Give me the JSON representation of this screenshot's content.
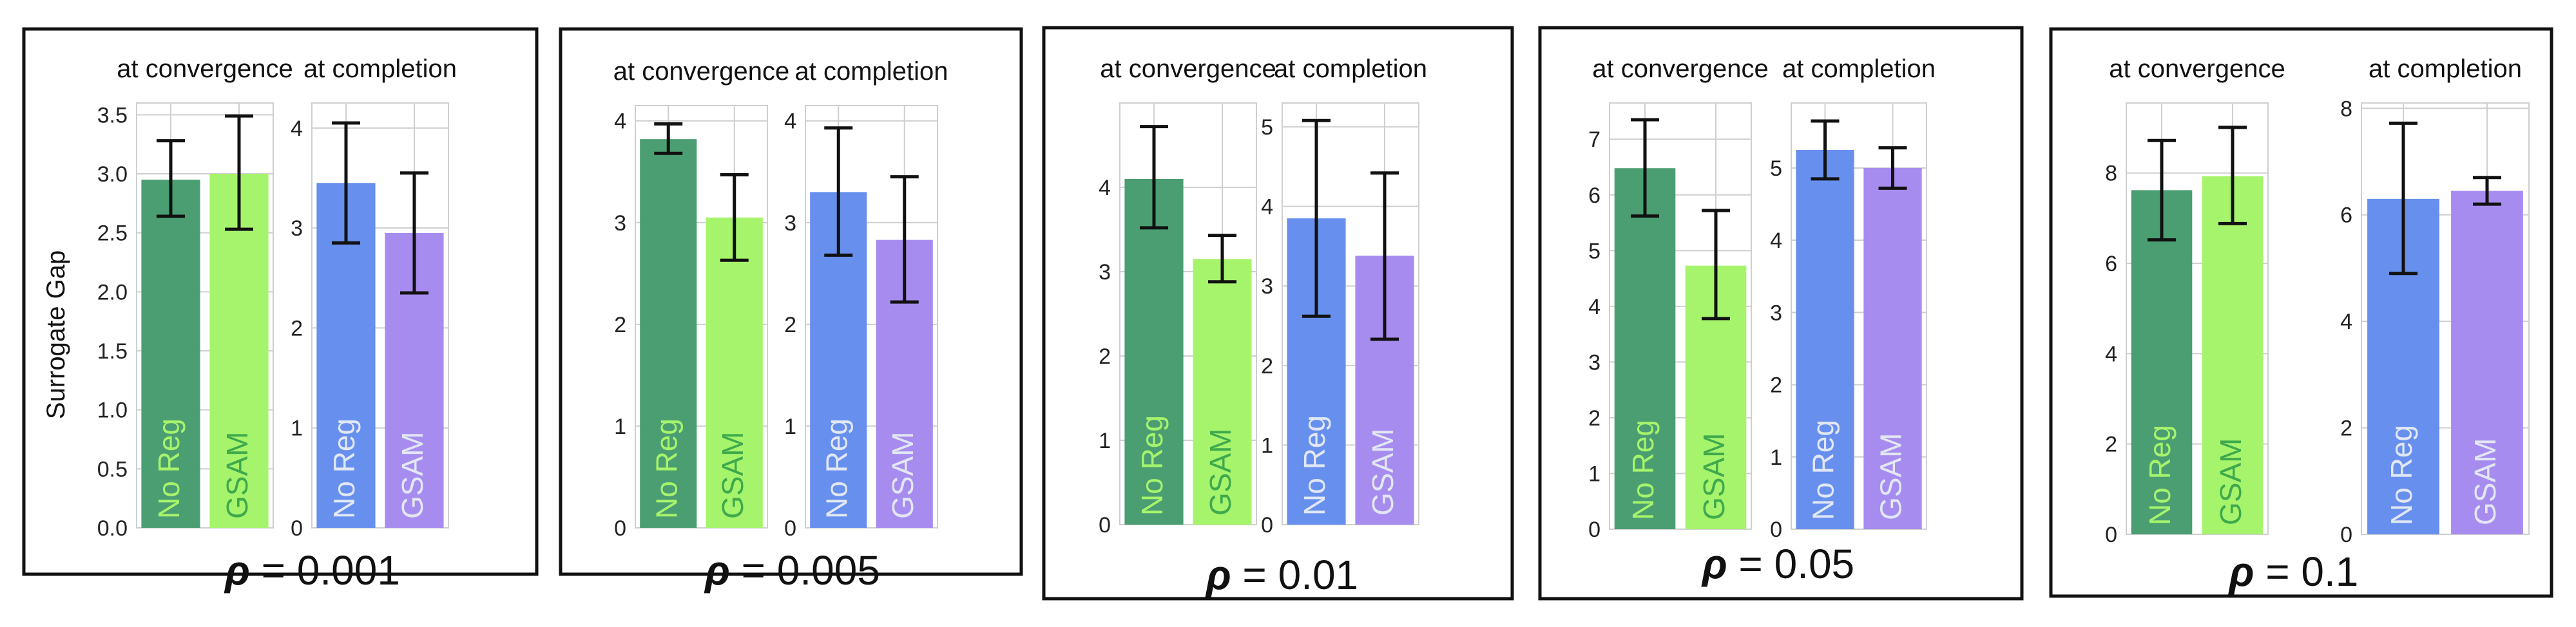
{
  "figure": {
    "ylabel": "Surrogate Gap",
    "rho_symbol": "ρ",
    "subplot_titles": {
      "convergence": "at convergence",
      "completion": "at completion"
    },
    "categories": [
      "No Reg",
      "GSAM"
    ],
    "colors": {
      "noreg_convergence": "#4b9e72",
      "gsam_convergence": "#a6f46c",
      "noreg_completion": "#6790ee",
      "gsam_completion": "#a78cef",
      "label_on_green": "#a6f46c",
      "label_on_light": "#3ea94c",
      "label_on_blue": "#e2e7f4",
      "grid": "#cfcfcf",
      "frame": "#111111",
      "errorbar": "#111111"
    }
  },
  "chart_data": [
    {
      "type": "bar",
      "rho": "0.001",
      "panels": [
        {
          "title": "at convergence",
          "ylim": [
            0,
            3.6
          ],
          "yticks": [
            "0.0",
            "0.5",
            "1.0",
            "1.5",
            "2.0",
            "2.5",
            "3.0",
            "3.5"
          ],
          "categories": [
            "No Reg",
            "GSAM"
          ],
          "values": [
            2.95,
            3.0
          ],
          "err_low": [
            2.64,
            2.53
          ],
          "err_high": [
            3.28,
            3.49
          ]
        },
        {
          "title": "at completion",
          "ylim": [
            0,
            4.25
          ],
          "yticks": [
            "0",
            "1",
            "2",
            "3",
            "4"
          ],
          "categories": [
            "No Reg",
            "GSAM"
          ],
          "values": [
            3.45,
            2.95
          ],
          "err_low": [
            2.85,
            2.35
          ],
          "err_high": [
            4.05,
            3.55
          ]
        }
      ]
    },
    {
      "type": "bar",
      "rho": "0.005",
      "panels": [
        {
          "title": "at convergence",
          "ylim": [
            0,
            4.15
          ],
          "yticks": [
            "0",
            "1",
            "2",
            "3",
            "4"
          ],
          "categories": [
            "No Reg",
            "GSAM"
          ],
          "values": [
            3.82,
            3.05
          ],
          "err_low": [
            3.68,
            2.63
          ],
          "err_high": [
            3.97,
            3.47
          ]
        },
        {
          "title": "at completion",
          "ylim": [
            0,
            4.15
          ],
          "yticks": [
            "0",
            "1",
            "2",
            "3",
            "4"
          ],
          "categories": [
            "No Reg",
            "GSAM"
          ],
          "values": [
            3.3,
            2.83
          ],
          "err_low": [
            2.68,
            2.22
          ],
          "err_high": [
            3.93,
            3.45
          ]
        }
      ]
    },
    {
      "type": "bar",
      "rho": "0.01",
      "panels": [
        {
          "title": "at convergence",
          "ylim": [
            0,
            5.0
          ],
          "yticks": [
            "0",
            "1",
            "2",
            "3",
            "4"
          ],
          "categories": [
            "No Reg",
            "GSAM"
          ],
          "values": [
            4.1,
            3.15
          ],
          "err_low": [
            3.52,
            2.88
          ],
          "err_high": [
            4.72,
            3.43
          ]
        },
        {
          "title": "at completion",
          "ylim": [
            0,
            5.3
          ],
          "yticks": [
            "0",
            "1",
            "2",
            "3",
            "4",
            "5"
          ],
          "categories": [
            "No Reg",
            "GSAM"
          ],
          "values": [
            3.85,
            3.38
          ],
          "err_low": [
            2.62,
            2.33
          ],
          "err_high": [
            5.08,
            4.42
          ]
        }
      ]
    },
    {
      "type": "bar",
      "rho": "0.05",
      "panels": [
        {
          "title": "at convergence",
          "ylim": [
            0,
            7.65
          ],
          "yticks": [
            "0",
            "1",
            "2",
            "3",
            "4",
            "5",
            "6",
            "7"
          ],
          "categories": [
            "No Reg",
            "GSAM"
          ],
          "values": [
            6.48,
            4.73
          ],
          "err_low": [
            5.62,
            3.78
          ],
          "err_high": [
            7.35,
            5.72
          ]
        },
        {
          "title": "at completion",
          "ylim": [
            0,
            5.9
          ],
          "yticks": [
            "0",
            "1",
            "2",
            "3",
            "4",
            "5"
          ],
          "categories": [
            "No Reg",
            "GSAM"
          ],
          "values": [
            5.25,
            5.0
          ],
          "err_low": [
            4.85,
            4.72
          ],
          "err_high": [
            5.65,
            5.28
          ]
        }
      ]
    },
    {
      "type": "bar",
      "rho": "0.1",
      "panels": [
        {
          "title": "at convergence",
          "ylim": [
            0,
            9.55
          ],
          "yticks": [
            "0",
            "2",
            "4",
            "6",
            "8"
          ],
          "categories": [
            "No Reg",
            "GSAM"
          ],
          "values": [
            7.62,
            7.93
          ],
          "err_low": [
            6.52,
            6.88
          ],
          "err_high": [
            8.72,
            9.01
          ]
        },
        {
          "title": "at completion",
          "ylim": [
            0,
            8.1
          ],
          "yticks": [
            "0",
            "2",
            "4",
            "6",
            "8"
          ],
          "categories": [
            "No Reg",
            "GSAM"
          ],
          "values": [
            6.3,
            6.45
          ],
          "err_low": [
            4.9,
            6.2
          ],
          "err_high": [
            7.72,
            6.7
          ]
        }
      ]
    }
  ]
}
